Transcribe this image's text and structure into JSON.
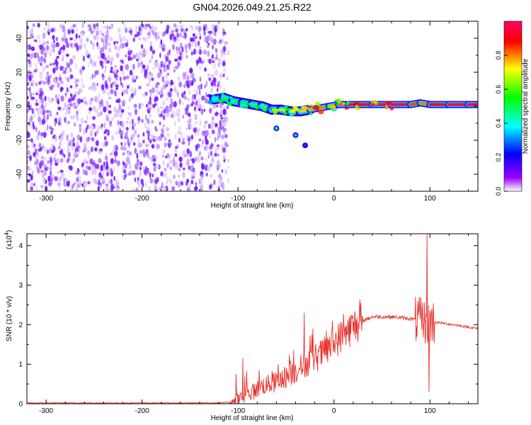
{
  "title": "GN04.2026.049.21.25.R22",
  "chart_data": [
    {
      "type": "heatmap",
      "title": "GN04.2026.049.21.25.R22",
      "xlabel": "Height of straight line (km)",
      "ylabel": "Frequency (Hz)",
      "xlim": [
        -320,
        150
      ],
      "ylim": [
        -50,
        50
      ],
      "xticks": [
        -300,
        -200,
        -100,
        0,
        100
      ],
      "yticks": [
        -40,
        -20,
        0,
        20,
        40
      ],
      "colorbar": {
        "label": "Normalized spectral amplitude",
        "range": [
          0,
          1
        ],
        "ticks": [
          "0.0",
          "0.2",
          "0.4",
          "0.6",
          "0.8"
        ],
        "tick_values": [
          0.0,
          0.2,
          0.4,
          0.6,
          0.8
        ],
        "colors": [
          "#ffffff",
          "#9900ff",
          "#0000ff",
          "#00ffff",
          "#00ff00",
          "#ffff00",
          "#ff0000",
          "#ff0066"
        ]
      },
      "noise_region": {
        "x": [
          -320,
          -110
        ],
        "y": [
          -50,
          48
        ],
        "level": 0.2,
        "color": "#8a2be2"
      },
      "ridge": [
        {
          "x": -125,
          "y": 4,
          "level": 0.35
        },
        {
          "x": -115,
          "y": 5,
          "level": 0.5
        },
        {
          "x": -105,
          "y": 3,
          "level": 0.55
        },
        {
          "x": -95,
          "y": 2,
          "level": 0.5
        },
        {
          "x": -85,
          "y": 1,
          "level": 0.55
        },
        {
          "x": -75,
          "y": 0,
          "level": 0.6
        },
        {
          "x": -65,
          "y": -2,
          "level": 0.6
        },
        {
          "x": -55,
          "y": -2,
          "level": 0.65
        },
        {
          "x": -45,
          "y": -3,
          "level": 0.7
        },
        {
          "x": -35,
          "y": -3,
          "level": 0.75
        },
        {
          "x": -25,
          "y": -2,
          "level": 0.75
        },
        {
          "x": -15,
          "y": -1,
          "level": 0.8
        },
        {
          "x": -5,
          "y": 0,
          "level": 0.8
        },
        {
          "x": 5,
          "y": 1,
          "level": 0.8
        },
        {
          "x": 15,
          "y": 1,
          "level": 0.85
        },
        {
          "x": 25,
          "y": 1,
          "level": 0.9
        },
        {
          "x": 40,
          "y": 1,
          "level": 0.95
        },
        {
          "x": 60,
          "y": 1,
          "level": 0.97
        },
        {
          "x": 80,
          "y": 1,
          "level": 0.97
        },
        {
          "x": 90,
          "y": 2,
          "level": 0.7
        },
        {
          "x": 100,
          "y": 1,
          "level": 0.9
        },
        {
          "x": 120,
          "y": 1,
          "level": 0.97
        },
        {
          "x": 140,
          "y": 1,
          "level": 0.97
        },
        {
          "x": 150,
          "y": 1,
          "level": 0.97
        }
      ],
      "side_blobs": [
        {
          "x": -60,
          "y": -13,
          "level": 0.4
        },
        {
          "x": -40,
          "y": -17,
          "level": 0.35
        },
        {
          "x": -30,
          "y": -23,
          "level": 0.25
        }
      ]
    },
    {
      "type": "line",
      "xlabel": "Height of straight line (km)",
      "ylabel": "SNR (10 * v/v)",
      "y_multiplier": "(x10",
      "y_multiplier_exp": "4",
      "y_multiplier_close": ")",
      "xlim": [
        -320,
        150
      ],
      "ylim": [
        0,
        4.3
      ],
      "xticks": [
        -300,
        -200,
        -100,
        0,
        100
      ],
      "yticks": [
        0,
        1,
        2,
        3,
        4
      ],
      "color": "#e8302a",
      "envelope": [
        {
          "x": -320,
          "y": 0.02
        },
        {
          "x": -120,
          "y": 0.02
        },
        {
          "x": -105,
          "y": 0.05
        },
        {
          "x": -95,
          "y": 0.15
        },
        {
          "x": -85,
          "y": 0.3
        },
        {
          "x": -75,
          "y": 0.45
        },
        {
          "x": -60,
          "y": 0.55
        },
        {
          "x": -45,
          "y": 0.75
        },
        {
          "x": -30,
          "y": 1.0
        },
        {
          "x": -20,
          "y": 1.15
        },
        {
          "x": -10,
          "y": 1.3
        },
        {
          "x": 0,
          "y": 1.55
        },
        {
          "x": 10,
          "y": 1.75
        },
        {
          "x": 20,
          "y": 1.95
        },
        {
          "x": 30,
          "y": 2.1
        },
        {
          "x": 40,
          "y": 2.2
        },
        {
          "x": 60,
          "y": 2.2
        },
        {
          "x": 80,
          "y": 2.15
        },
        {
          "x": 90,
          "y": 2.1
        },
        {
          "x": 110,
          "y": 2.05
        },
        {
          "x": 130,
          "y": 1.98
        },
        {
          "x": 150,
          "y": 1.9
        }
      ],
      "peaks": [
        {
          "x": -102,
          "y": 0.75
        },
        {
          "x": -95,
          "y": 1.15
        },
        {
          "x": -78,
          "y": 0.85
        },
        {
          "x": -58,
          "y": 1.0
        },
        {
          "x": -42,
          "y": 1.35
        },
        {
          "x": -31,
          "y": 2.3
        },
        {
          "x": -22,
          "y": 1.9
        },
        {
          "x": -8,
          "y": 1.85
        },
        {
          "x": 97,
          "y": 4.3
        },
        {
          "x": 99,
          "y": 0.3
        }
      ]
    }
  ]
}
